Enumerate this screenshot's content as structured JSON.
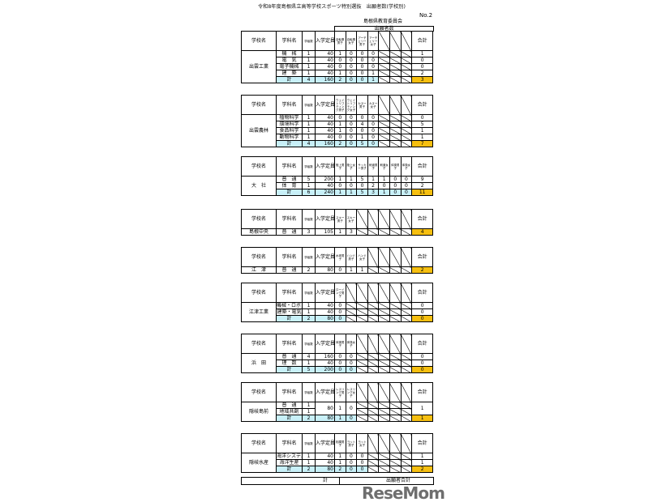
{
  "title": "令和8年度島根県立高等学校スポーツ特別選抜　出願者数(学校別)",
  "page_no": "No.2",
  "org": "島根県教育委員会",
  "applicants_label": "出願者数",
  "headers": {
    "school": "学校名",
    "dept": "学科名",
    "classes": "学級数",
    "capacity": "入学定員",
    "total": "合計",
    "sum": "計"
  },
  "tables": [
    {
      "school": "出雲工業",
      "sports": [
        "自転車男子",
        "自転車女子",
        "アーチェリー男子",
        "アーチェリー女子",
        "",
        "",
        ""
      ],
      "rows": [
        {
          "dept": "機　械",
          "classes": "1",
          "cap": "40",
          "vals": [
            "1",
            "0",
            "0",
            "0"
          ],
          "total": "1"
        },
        {
          "dept": "電　気",
          "classes": "1",
          "cap": "40",
          "vals": [
            "0",
            "0",
            "0",
            "0"
          ],
          "total": "0"
        },
        {
          "dept": "電子機械",
          "classes": "1",
          "cap": "40",
          "vals": [
            "0",
            "0",
            "0",
            "0"
          ],
          "total": "0"
        },
        {
          "dept": "建　築",
          "classes": "1",
          "cap": "40",
          "vals": [
            "1",
            "0",
            "0",
            "1"
          ],
          "total": "2"
        }
      ],
      "sum": {
        "classes": "4",
        "cap": "160",
        "vals": [
          "2",
          "0",
          "0",
          "1"
        ],
        "total": "3"
      }
    },
    {
      "school": "出雲農林",
      "sports": [
        "ウェイトリフティング男子",
        "ウェイトリフティング女子",
        "カヌー男子",
        "カヌー女子",
        "",
        "",
        ""
      ],
      "rows": [
        {
          "dept": "植物科学",
          "classes": "1",
          "cap": "40",
          "vals": [
            "0",
            "0",
            "0",
            "0"
          ],
          "total": "0"
        },
        {
          "dept": "環境科学",
          "classes": "1",
          "cap": "40",
          "vals": [
            "1",
            "0",
            "4",
            "0"
          ],
          "total": "5"
        },
        {
          "dept": "食品科学",
          "classes": "1",
          "cap": "40",
          "vals": [
            "1",
            "0",
            "0",
            "0"
          ],
          "total": "1"
        },
        {
          "dept": "動物科学",
          "classes": "1",
          "cap": "40",
          "vals": [
            "0",
            "0",
            "1",
            "0"
          ],
          "total": "1"
        }
      ],
      "sum": {
        "classes": "4",
        "cap": "160",
        "vals": [
          "2",
          "0",
          "5",
          "0"
        ],
        "total": "7"
      }
    },
    {
      "school": "大　社",
      "sports": [
        "陸上男子",
        "陸上女子",
        "サッカー男子",
        "剣道男子",
        "剣道女子",
        "体操男子",
        "体操女子"
      ],
      "rows": [
        {
          "dept": "普　通",
          "classes": "5",
          "cap": "200",
          "vals": [
            "1",
            "1",
            "5",
            "1",
            "1",
            "0",
            "0"
          ],
          "total": "9"
        },
        {
          "dept": "体　育",
          "classes": "1",
          "cap": "40",
          "vals": [
            "0",
            "0",
            "0",
            "2",
            "0",
            "0",
            "0"
          ],
          "total": "2"
        }
      ],
      "sum": {
        "classes": "6",
        "cap": "240",
        "vals": [
          "1",
          "1",
          "5",
          "3",
          "1",
          "0",
          "0"
        ],
        "total": "11"
      }
    },
    {
      "school": "島根中央",
      "sports": [
        "スキー男子",
        "スキー女子",
        "",
        "",
        "",
        "",
        ""
      ],
      "rows": [
        {
          "dept": "普　通",
          "classes": "3",
          "cap": "105",
          "vals": [
            "1",
            "3"
          ],
          "total": "4",
          "tot": true
        }
      ]
    },
    {
      "school": "江　津",
      "sports": [
        "水球男子",
        "ハンド男子",
        "ハンド女子",
        "",
        "",
        "",
        ""
      ],
      "rows": [
        {
          "dept": "普　通",
          "classes": "2",
          "cap": "80",
          "vals": [
            "0",
            "1",
            "1"
          ],
          "total": "2",
          "tot": true
        }
      ]
    },
    {
      "school": "江津工業",
      "sports": [
        "ローイング男子",
        "",
        "",
        "",
        "",
        "",
        ""
      ],
      "rows": [
        {
          "dept": "機械・ロボット",
          "classes": "1",
          "cap": "40",
          "vals": [
            "0"
          ],
          "total": "0"
        },
        {
          "dept": "建築・電気",
          "classes": "1",
          "cap": "40",
          "vals": [
            "0"
          ],
          "total": "0"
        }
      ],
      "sum": {
        "classes": "2",
        "cap": "80",
        "vals": [
          "0"
        ],
        "total": "0"
      }
    },
    {
      "school": "浜　田",
      "sports": [
        "体操男子",
        "体操女子",
        "",
        "",
        "",
        "",
        ""
      ],
      "rows": [
        {
          "dept": "普　通",
          "classes": "4",
          "cap": "160",
          "vals": [
            "0",
            "0"
          ],
          "total": "0"
        },
        {
          "dept": "理　数",
          "classes": "1",
          "cap": "40",
          "vals": [
            "0",
            "0"
          ],
          "total": "0"
        }
      ],
      "sum": {
        "classes": "5",
        "cap": "200",
        "vals": [
          "0",
          "0"
        ],
        "total": "0"
      }
    },
    {
      "school": "隠岐島前",
      "merged": true,
      "sports": [
        "レスリング男子",
        "レスリング女子",
        "",
        "",
        "",
        "",
        ""
      ],
      "rows": [
        {
          "dept": "普　通",
          "classes": "1",
          "cap": "80",
          "vals": [
            "1",
            "0"
          ],
          "total": "1"
        },
        {
          "dept": "地域共創",
          "classes": "1"
        }
      ],
      "sum": {
        "classes": "2",
        "cap": "80",
        "vals": [
          "1",
          "0"
        ],
        "total": "1"
      }
    },
    {
      "school": "隠岐水産",
      "sports": [
        "相撲男子",
        "ヨット男子",
        "ヨット女子",
        "",
        "",
        "",
        ""
      ],
      "rows": [
        {
          "dept": "海洋システム",
          "classes": "1",
          "cap": "40",
          "vals": [
            "1",
            "0",
            "0"
          ],
          "total": "1"
        },
        {
          "dept": "海洋生産",
          "classes": "1",
          "cap": "40",
          "vals": [
            "1",
            "0",
            "0"
          ],
          "total": "1"
        }
      ],
      "sum": {
        "classes": "2",
        "cap": "80",
        "vals": [
          "2",
          "0",
          "0"
        ],
        "total": "2"
      }
    }
  ],
  "final": {
    "sum": "計",
    "label": "出願者合計"
  },
  "watermark": "ReseMom",
  "colors": {
    "sum_row": "#c8f0f8",
    "total_cell": "#f6bf10"
  }
}
